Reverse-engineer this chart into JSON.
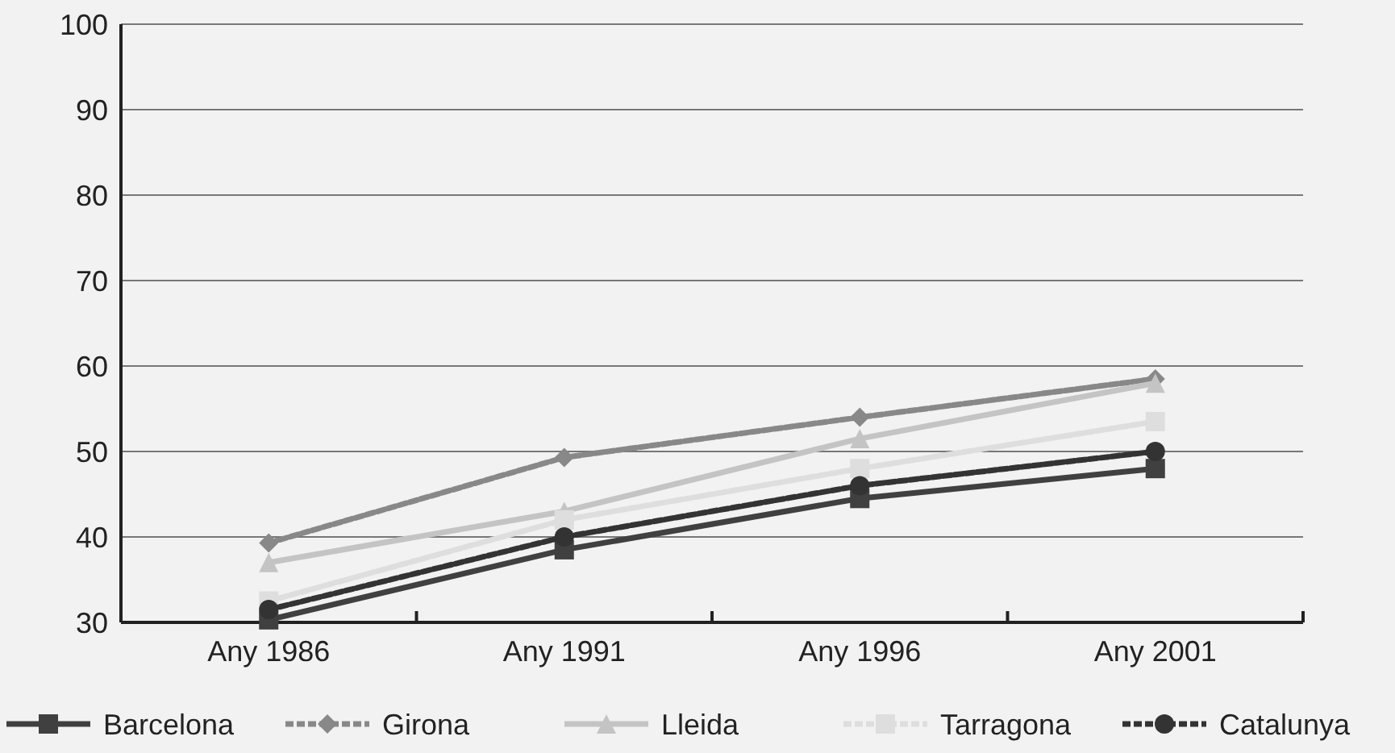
{
  "chart_data": {
    "type": "line",
    "categories": [
      "Any 1986",
      "Any 1991",
      "Any 1996",
      "Any 2001"
    ],
    "series": [
      {
        "name": "Barcelona",
        "color": "#404040",
        "marker": "square",
        "line_style": "solid",
        "values": [
          30.3,
          38.5,
          44.5,
          48
        ]
      },
      {
        "name": "Girona",
        "color": "#888888",
        "marker": "diamond",
        "line_style": "dashed",
        "values": [
          39.3,
          49.3,
          54,
          58.5
        ]
      },
      {
        "name": "Lleida",
        "color": "#c4c4c4",
        "marker": "triangle",
        "line_style": "solid",
        "values": [
          37,
          43,
          51.5,
          58
        ]
      },
      {
        "name": "Tarragona",
        "color": "#dedede",
        "marker": "square",
        "line_style": "dashed",
        "values": [
          32.5,
          42,
          48,
          53.5
        ]
      },
      {
        "name": "Catalunya",
        "color": "#333333",
        "marker": "circle",
        "line_style": "dashed",
        "values": [
          31.5,
          40,
          46,
          50
        ]
      }
    ],
    "ylim": [
      30,
      100
    ],
    "yticks": [
      30,
      40,
      50,
      60,
      70,
      80,
      90,
      100
    ],
    "grid": "y",
    "legend": "bottom"
  }
}
